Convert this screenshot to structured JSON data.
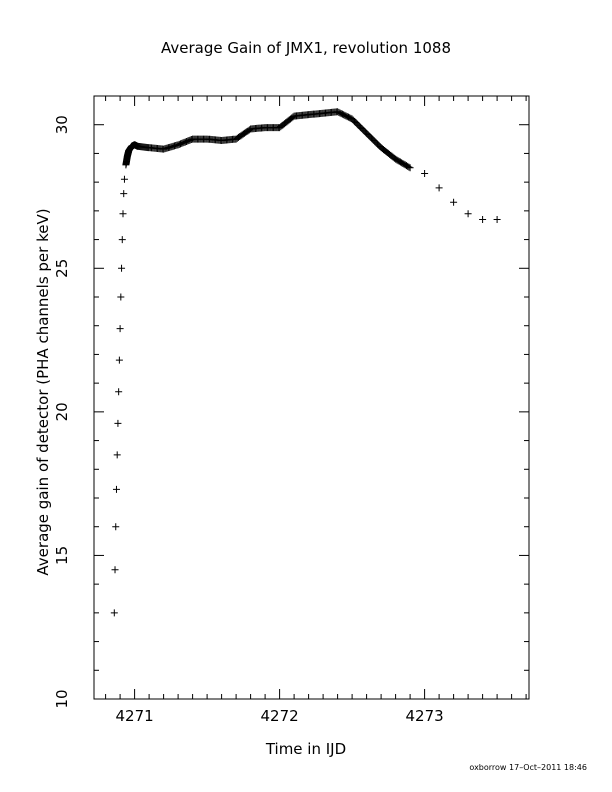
{
  "chart_data": {
    "type": "scatter",
    "title": "Average Gain of JMX1, revolution 1088",
    "xlabel": "Time in IJD",
    "ylabel": "Average gain of detector (PHA channels per keV)",
    "xlim": [
      4270.72,
      4273.72
    ],
    "ylim": [
      10,
      31
    ],
    "xticks": [
      4271,
      4272,
      4273
    ],
    "xtick_labels": [
      "4271",
      "4272",
      "4273"
    ],
    "yticks": [
      10,
      15,
      20,
      25,
      30
    ],
    "ytick_labels": [
      "10",
      "15",
      "20",
      "25",
      "30"
    ],
    "grid": false,
    "legend": "none",
    "marker": "plus",
    "color": "#000000",
    "series": [
      {
        "x": [
          4270.86,
          4270.865,
          4270.87,
          4270.875,
          4270.88,
          4270.885,
          4270.89,
          4270.895,
          4270.9,
          4270.905,
          4270.91,
          4270.915,
          4270.92,
          4270.925,
          4270.93,
          4270.94,
          4270.95,
          4270.96,
          4270.98,
          4271.0,
          4271.02,
          4271.1,
          4271.2,
          4271.3,
          4271.4,
          4271.5,
          4271.6,
          4271.7,
          4271.8,
          4271.9,
          4272.0,
          4272.1,
          4272.2,
          4272.3,
          4272.4,
          4272.5,
          4272.6,
          4272.7,
          4272.8,
          4272.9,
          4273.0,
          4273.1,
          4273.2,
          4273.3,
          4273.4,
          4273.5
        ],
        "y": [
          13.0,
          14.5,
          16.0,
          17.3,
          18.5,
          19.6,
          20.7,
          21.8,
          22.9,
          24.0,
          25.0,
          26.0,
          26.9,
          27.6,
          28.1,
          28.6,
          28.9,
          29.1,
          29.25,
          29.3,
          29.25,
          29.2,
          29.15,
          29.3,
          29.5,
          29.5,
          29.45,
          29.5,
          29.85,
          29.9,
          29.9,
          30.3,
          30.35,
          30.4,
          30.45,
          30.2,
          29.7,
          29.2,
          28.8,
          28.5,
          28.3,
          27.8,
          27.3,
          26.9,
          26.7,
          26.7
        ]
      }
    ]
  },
  "footer": {
    "stamp": "oxborrow 17–Oct–2011 18:46"
  }
}
